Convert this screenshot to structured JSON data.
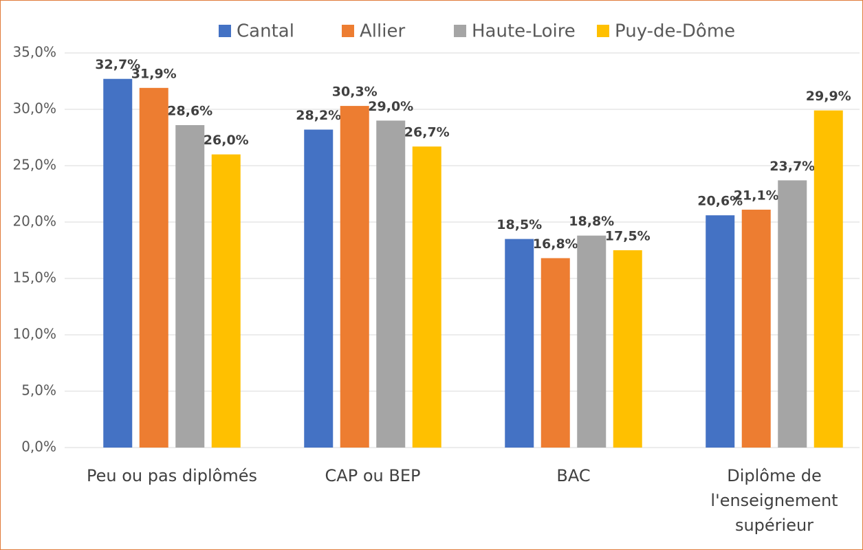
{
  "chart_data": {
    "type": "bar",
    "categories": [
      "Peu ou pas diplômés",
      "CAP ou BEP",
      "BAC",
      "Diplôme de l'enseignement supérieur"
    ],
    "series": [
      {
        "name": "Cantal",
        "color": "#4472c4",
        "values": [
          32.7,
          28.2,
          18.5,
          20.6
        ],
        "value_labels": [
          "32,7%",
          "28,2%",
          "18,5%",
          "20,6%"
        ]
      },
      {
        "name": "Allier",
        "color": "#ed7d31",
        "values": [
          31.9,
          30.3,
          16.8,
          21.1
        ],
        "value_labels": [
          "31,9%",
          "30,3%",
          "16,8%",
          "21,1%"
        ]
      },
      {
        "name": "Haute-Loire",
        "color": "#a5a5a5",
        "values": [
          28.6,
          29.0,
          18.8,
          23.7
        ],
        "value_labels": [
          "28,6%",
          "29,0%",
          "18,8%",
          "23,7%"
        ]
      },
      {
        "name": "Puy-de-Dôme",
        "color": "#ffc000",
        "values": [
          26.0,
          26.7,
          17.5,
          29.9
        ],
        "value_labels": [
          "26,0%",
          "26,7%",
          "17,5%",
          "29,9%"
        ]
      }
    ],
    "ylim": [
      0,
      35
    ],
    "yticks": [
      {
        "value": 0,
        "label": "0,0%"
      },
      {
        "value": 5,
        "label": "5,0%"
      },
      {
        "value": 10,
        "label": "10,0%"
      },
      {
        "value": 15,
        "label": "15,0%"
      },
      {
        "value": 20,
        "label": "20,0%"
      },
      {
        "value": 25,
        "label": "25,0%"
      },
      {
        "value": 30,
        "label": "30,0%"
      },
      {
        "value": 35,
        "label": "35,0%"
      }
    ],
    "grid": true,
    "legend": "top"
  }
}
